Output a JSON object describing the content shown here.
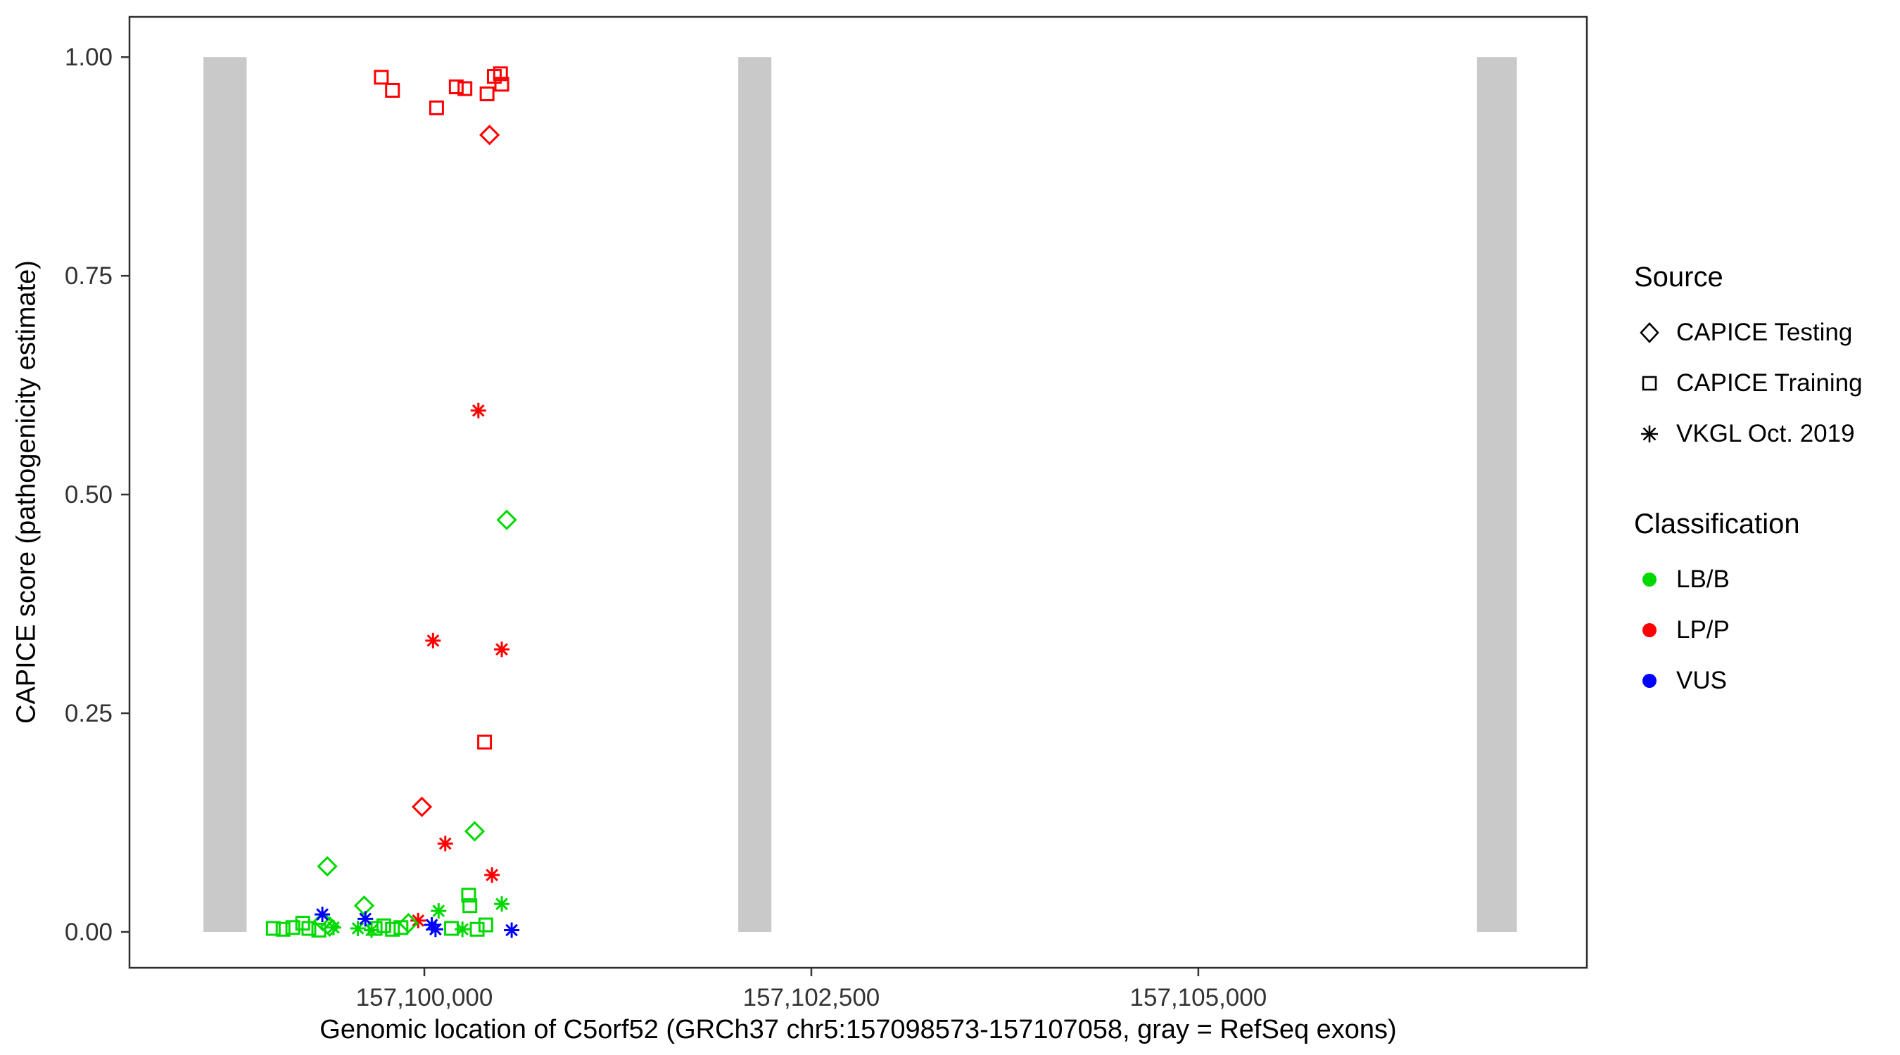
{
  "figure": {
    "x_axis_title": "Genomic location of C5orf52 (GRCh37 chr5:157098573-157107058, gray = RefSeq exons)",
    "y_axis_title": "CAPICE score (pathogenicity estimate)"
  },
  "legend": {
    "source": {
      "title": "Source",
      "items": [
        {
          "label": "CAPICE Testing",
          "shape": "diamond"
        },
        {
          "label": "CAPICE Training",
          "shape": "square"
        },
        {
          "label": "VKGL Oct. 2019",
          "shape": "asterisk"
        }
      ]
    },
    "classification": {
      "title": "Classification",
      "items": [
        {
          "label": "LB/B",
          "color": "#00d900"
        },
        {
          "label": "LP/P",
          "color": "#ff0000"
        },
        {
          "label": "VUS",
          "color": "#0000ff"
        }
      ]
    }
  },
  "chart_data": {
    "type": "scatter",
    "title": "",
    "xlabel": "Genomic location of C5orf52 (GRCh37 chr5:157098573-157107058, gray = RefSeq exons)",
    "ylabel": "CAPICE score (pathogenicity estimate)",
    "x_range": [
      157098095,
      157107510
    ],
    "y_range": [
      -0.041,
      1.046
    ],
    "grid": false,
    "legend_position": "right",
    "x_ticks": [
      {
        "value": 157100000,
        "label": "157,100,000"
      },
      {
        "value": 157102500,
        "label": "157,102,500"
      },
      {
        "value": 157105000,
        "label": "157,105,000"
      }
    ],
    "y_ticks": [
      {
        "value": 0.0,
        "label": "0.00"
      },
      {
        "value": 0.25,
        "label": "0.25"
      },
      {
        "value": 0.5,
        "label": "0.50"
      },
      {
        "value": 0.75,
        "label": "0.75"
      },
      {
        "value": 1.0,
        "label": "1.00"
      }
    ],
    "exon_color": "#c9c9c9",
    "panel_border_color": "#2f2f2f",
    "tick_color": "#333333",
    "exons": [
      [
        157098573,
        157098852
      ],
      [
        157102028,
        157102242
      ],
      [
        157106800,
        157107058
      ]
    ],
    "colors": {
      "LB/B": "#00d900",
      "LP/P": "#ff0000",
      "VUS": "#0000ff"
    },
    "shapes": {
      "CAPICE Testing": "diamond",
      "CAPICE Training": "square",
      "VKGL Oct. 2019": "asterisk"
    },
    "points_format": [
      "x_genomic_position",
      "capice_score",
      "source",
      "classification"
    ],
    "points": [
      [
        157099722,
        0.977,
        "CAPICE Training",
        "LP/P"
      ],
      [
        157099794,
        0.962,
        "CAPICE Training",
        "LP/P"
      ],
      [
        157100079,
        0.942,
        "CAPICE Training",
        "LP/P"
      ],
      [
        157100206,
        0.966,
        "CAPICE Training",
        "LP/P"
      ],
      [
        157100262,
        0.964,
        "CAPICE Training",
        "LP/P"
      ],
      [
        157100405,
        0.958,
        "CAPICE Training",
        "LP/P"
      ],
      [
        157100452,
        0.978,
        "CAPICE Training",
        "LP/P"
      ],
      [
        157100492,
        0.981,
        "CAPICE Training",
        "LP/P"
      ],
      [
        157100500,
        0.969,
        "CAPICE Training",
        "LP/P"
      ],
      [
        157100389,
        0.217,
        "CAPICE Training",
        "LP/P"
      ],
      [
        157100421,
        0.911,
        "CAPICE Testing",
        "LP/P"
      ],
      [
        157099984,
        0.143,
        "CAPICE Testing",
        "LP/P"
      ],
      [
        157100349,
        0.596,
        "VKGL Oct. 2019",
        "LP/P"
      ],
      [
        157100056,
        0.333,
        "VKGL Oct. 2019",
        "LP/P"
      ],
      [
        157100500,
        0.323,
        "VKGL Oct. 2019",
        "LP/P"
      ],
      [
        157100135,
        0.101,
        "VKGL Oct. 2019",
        "LP/P"
      ],
      [
        157100437,
        0.065,
        "VKGL Oct. 2019",
        "LP/P"
      ],
      [
        157099960,
        0.013,
        "VKGL Oct. 2019",
        "LP/P"
      ],
      [
        157100532,
        0.471,
        "CAPICE Testing",
        "LB/B"
      ],
      [
        157100325,
        0.115,
        "CAPICE Testing",
        "LB/B"
      ],
      [
        157099373,
        0.075,
        "CAPICE Testing",
        "LB/B"
      ],
      [
        157099611,
        0.03,
        "CAPICE Testing",
        "LB/B"
      ],
      [
        157099345,
        0.012,
        "CAPICE Testing",
        "LB/B"
      ],
      [
        157099897,
        0.01,
        "CAPICE Testing",
        "LB/B"
      ],
      [
        157099389,
        0.006,
        "CAPICE Testing",
        "LB/B"
      ],
      [
        157100286,
        0.042,
        "CAPICE Training",
        "LB/B"
      ],
      [
        157100294,
        0.03,
        "CAPICE Training",
        "LB/B"
      ],
      [
        157099024,
        0.004,
        "CAPICE Training",
        "LB/B"
      ],
      [
        157099087,
        0.003,
        "CAPICE Training",
        "LB/B"
      ],
      [
        157099150,
        0.005,
        "CAPICE Training",
        "LB/B"
      ],
      [
        157099214,
        0.01,
        "CAPICE Training",
        "LB/B"
      ],
      [
        157099254,
        0.004,
        "CAPICE Training",
        "LB/B"
      ],
      [
        157099318,
        0.002,
        "CAPICE Training",
        "LB/B"
      ],
      [
        157099682,
        0.004,
        "CAPICE Training",
        "LB/B"
      ],
      [
        157099738,
        0.007,
        "CAPICE Training",
        "LB/B"
      ],
      [
        157099794,
        0.003,
        "CAPICE Training",
        "LB/B"
      ],
      [
        157099849,
        0.005,
        "CAPICE Training",
        "LB/B"
      ],
      [
        157100175,
        0.004,
        "CAPICE Training",
        "LB/B"
      ],
      [
        157100341,
        0.003,
        "CAPICE Training",
        "LB/B"
      ],
      [
        157100397,
        0.008,
        "CAPICE Training",
        "LB/B"
      ],
      [
        157100500,
        0.032,
        "VKGL Oct. 2019",
        "LB/B"
      ],
      [
        157100092,
        0.024,
        "VKGL Oct. 2019",
        "LB/B"
      ],
      [
        157099413,
        0.005,
        "VKGL Oct. 2019",
        "LB/B"
      ],
      [
        157099571,
        0.004,
        "VKGL Oct. 2019",
        "LB/B"
      ],
      [
        157100246,
        0.003,
        "VKGL Oct. 2019",
        "LB/B"
      ],
      [
        157099659,
        0.002,
        "VKGL Oct. 2019",
        "LB/B"
      ],
      [
        157099341,
        0.02,
        "VKGL Oct. 2019",
        "VUS"
      ],
      [
        157099619,
        0.015,
        "VKGL Oct. 2019",
        "VUS"
      ],
      [
        157100048,
        0.008,
        "VKGL Oct. 2019",
        "VUS"
      ],
      [
        157100564,
        0.002,
        "VKGL Oct. 2019",
        "VUS"
      ],
      [
        157100072,
        0.003,
        "VKGL Oct. 2019",
        "VUS"
      ]
    ]
  }
}
